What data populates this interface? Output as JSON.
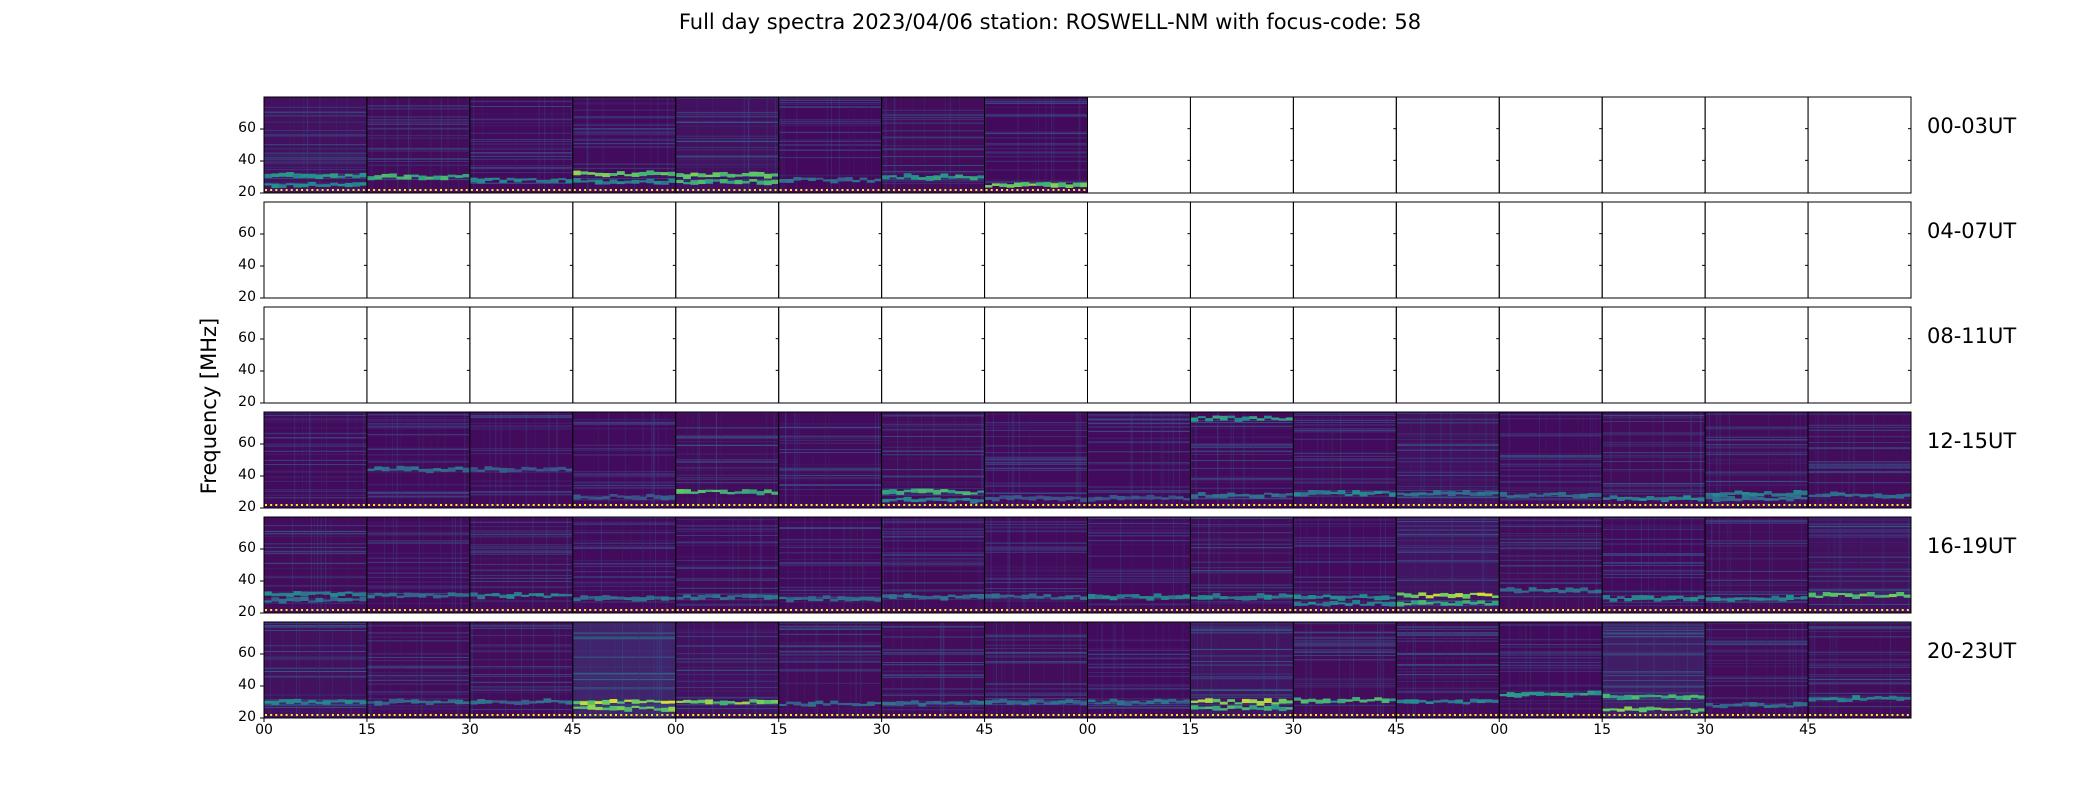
{
  "chart_data": {
    "type": "heatmap",
    "title": "Full day spectra 2023/04/06 station: ROSWELL-NM with focus-code: 58",
    "ylabel": "Frequency [MHz]",
    "xlabel": "",
    "ylim": [
      20,
      80
    ],
    "yticks": [
      "20",
      "40",
      "60"
    ],
    "xticks": [
      "00",
      "15",
      "30",
      "45",
      "00",
      "15",
      "30",
      "45",
      "00",
      "15",
      "30",
      "45",
      "00",
      "15",
      "30",
      "45"
    ],
    "colormap": "viridis",
    "rows": [
      {
        "label": "00-03UT",
        "panels": [
          {
            "present": true,
            "bands": [
              [
                31,
                0.6
              ],
              [
                25,
                0.5
              ]
            ],
            "bg": 0.2
          },
          {
            "present": true,
            "bands": [
              [
                30,
                0.7
              ]
            ],
            "bg": 0.15
          },
          {
            "present": true,
            "bands": [
              [
                28,
                0.5
              ]
            ],
            "bg": 0.12
          },
          {
            "present": true,
            "bands": [
              [
                32,
                0.85
              ],
              [
                27,
                0.5
              ]
            ],
            "bg": 0.12
          },
          {
            "present": true,
            "bands": [
              [
                31,
                0.8
              ],
              [
                27,
                0.7
              ]
            ],
            "bg": 0.2
          },
          {
            "present": true,
            "bands": [
              [
                28,
                0.4
              ]
            ],
            "bg": 0.1
          },
          {
            "present": true,
            "bands": [
              [
                30,
                0.6
              ]
            ],
            "bg": 0.15
          },
          {
            "present": true,
            "bands": [
              [
                25,
                0.85
              ]
            ],
            "bg": 0.1
          },
          {
            "present": false
          },
          {
            "present": false
          },
          {
            "present": false
          },
          {
            "present": false
          },
          {
            "present": false
          },
          {
            "present": false
          },
          {
            "present": false
          },
          {
            "present": false
          }
        ]
      },
      {
        "label": "04-07UT",
        "panels": [
          {
            "present": false
          },
          {
            "present": false
          },
          {
            "present": false
          },
          {
            "present": false
          },
          {
            "present": false
          },
          {
            "present": false
          },
          {
            "present": false
          },
          {
            "present": false
          },
          {
            "present": false
          },
          {
            "present": false
          },
          {
            "present": false
          },
          {
            "present": false
          },
          {
            "present": false
          },
          {
            "present": false
          },
          {
            "present": false
          },
          {
            "present": false
          }
        ]
      },
      {
        "label": "08-11UT",
        "panels": [
          {
            "present": false
          },
          {
            "present": false
          },
          {
            "present": false
          },
          {
            "present": false
          },
          {
            "present": false
          },
          {
            "present": false
          },
          {
            "present": false
          },
          {
            "present": false
          },
          {
            "present": false
          },
          {
            "present": false
          },
          {
            "present": false
          },
          {
            "present": false
          },
          {
            "present": false
          },
          {
            "present": false
          },
          {
            "present": false
          },
          {
            "present": false
          }
        ]
      },
      {
        "label": "12-15UT",
        "panels": [
          {
            "present": true,
            "bands": [],
            "bg": 0.12
          },
          {
            "present": true,
            "bands": [
              [
                44,
                0.4
              ]
            ],
            "bg": 0.12
          },
          {
            "present": true,
            "bands": [
              [
                44,
                0.3
              ]
            ],
            "bg": 0.12
          },
          {
            "present": true,
            "bands": [
              [
                27,
                0.3
              ]
            ],
            "bg": 0.12
          },
          {
            "present": true,
            "bands": [
              [
                30,
                0.75
              ]
            ],
            "bg": 0.15
          },
          {
            "present": true,
            "bands": [],
            "bg": 0.12
          },
          {
            "present": true,
            "bands": [
              [
                30,
                0.7
              ],
              [
                25,
                0.5
              ]
            ],
            "bg": 0.15
          },
          {
            "present": true,
            "bands": [
              [
                26,
                0.3
              ]
            ],
            "bg": 0.12
          },
          {
            "present": true,
            "bands": [
              [
                26,
                0.3
              ]
            ],
            "bg": 0.12
          },
          {
            "present": true,
            "bands": [
              [
                28,
                0.4
              ],
              [
                76,
                0.6
              ]
            ],
            "bg": 0.12
          },
          {
            "present": true,
            "bands": [
              [
                29,
                0.5
              ]
            ],
            "bg": 0.12
          },
          {
            "present": true,
            "bands": [
              [
                29,
                0.4
              ]
            ],
            "bg": 0.2
          },
          {
            "present": true,
            "bands": [
              [
                28,
                0.4
              ]
            ],
            "bg": 0.12
          },
          {
            "present": true,
            "bands": [
              [
                26,
                0.5
              ]
            ],
            "bg": 0.15
          },
          {
            "present": true,
            "bands": [
              [
                29,
                0.5
              ],
              [
                26,
                0.4
              ]
            ],
            "bg": 0.15
          },
          {
            "present": true,
            "bands": [
              [
                28,
                0.4
              ]
            ],
            "bg": 0.15
          }
        ]
      },
      {
        "label": "16-19UT",
        "panels": [
          {
            "present": true,
            "bands": [
              [
                32,
                0.5
              ],
              [
                28,
                0.4
              ]
            ],
            "bg": 0.15
          },
          {
            "present": true,
            "bands": [
              [
                31,
                0.4
              ]
            ],
            "bg": 0.12
          },
          {
            "present": true,
            "bands": [
              [
                31,
                0.5
              ]
            ],
            "bg": 0.15
          },
          {
            "present": true,
            "bands": [
              [
                29,
                0.4
              ]
            ],
            "bg": 0.12
          },
          {
            "present": true,
            "bands": [
              [
                30,
                0.4
              ]
            ],
            "bg": 0.12
          },
          {
            "present": true,
            "bands": [
              [
                29,
                0.4
              ]
            ],
            "bg": 0.12
          },
          {
            "present": true,
            "bands": [
              [
                30,
                0.4
              ]
            ],
            "bg": 0.12
          },
          {
            "present": true,
            "bands": [
              [
                30,
                0.4
              ]
            ],
            "bg": 0.12
          },
          {
            "present": true,
            "bands": [
              [
                30,
                0.5
              ]
            ],
            "bg": 0.12
          },
          {
            "present": true,
            "bands": [
              [
                30,
                0.5
              ]
            ],
            "bg": 0.15
          },
          {
            "present": true,
            "bands": [
              [
                30,
                0.5
              ],
              [
                26,
                0.5
              ]
            ],
            "bg": 0.12
          },
          {
            "present": true,
            "bands": [
              [
                31,
                0.95
              ],
              [
                26,
                0.7
              ]
            ],
            "bg": 0.25
          },
          {
            "present": true,
            "bands": [
              [
                34,
                0.4
              ]
            ],
            "bg": 0.15
          },
          {
            "present": true,
            "bands": [
              [
                29,
                0.5
              ]
            ],
            "bg": 0.12
          },
          {
            "present": true,
            "bands": [
              [
                29,
                0.5
              ]
            ],
            "bg": 0.15
          },
          {
            "present": true,
            "bands": [
              [
                31,
                0.8
              ]
            ],
            "bg": 0.2
          }
        ]
      },
      {
        "label": "20-23UT",
        "panels": [
          {
            "present": true,
            "bands": [
              [
                30,
                0.5
              ]
            ],
            "bg": 0.2
          },
          {
            "present": true,
            "bands": [
              [
                30,
                0.4
              ]
            ],
            "bg": 0.15
          },
          {
            "present": true,
            "bands": [
              [
                30,
                0.4
              ]
            ],
            "bg": 0.15
          },
          {
            "present": true,
            "bands": [
              [
                30,
                0.95
              ],
              [
                26,
                0.85
              ]
            ],
            "bg": 0.45
          },
          {
            "present": true,
            "bands": [
              [
                30,
                0.85
              ]
            ],
            "bg": 0.2
          },
          {
            "present": true,
            "bands": [
              [
                29,
                0.4
              ]
            ],
            "bg": 0.15
          },
          {
            "present": true,
            "bands": [
              [
                29,
                0.4
              ]
            ],
            "bg": 0.15
          },
          {
            "present": true,
            "bands": [
              [
                30,
                0.4
              ]
            ],
            "bg": 0.15
          },
          {
            "present": true,
            "bands": [
              [
                30,
                0.4
              ]
            ],
            "bg": 0.12
          },
          {
            "present": true,
            "bands": [
              [
                30,
                0.9
              ],
              [
                26,
                0.7
              ]
            ],
            "bg": 0.25
          },
          {
            "present": true,
            "bands": [
              [
                31,
                0.7
              ]
            ],
            "bg": 0.15
          },
          {
            "present": true,
            "bands": [
              [
                30,
                0.5
              ]
            ],
            "bg": 0.15
          },
          {
            "present": true,
            "bands": [
              [
                35,
                0.6
              ]
            ],
            "bg": 0.12
          },
          {
            "present": true,
            "bands": [
              [
                33,
                0.7
              ],
              [
                25,
                0.9
              ]
            ],
            "bg": 0.35
          },
          {
            "present": true,
            "bands": [
              [
                28,
                0.4
              ]
            ],
            "bg": 0.15
          },
          {
            "present": true,
            "bands": [
              [
                32,
                0.5
              ]
            ],
            "bg": 0.15
          }
        ]
      }
    ]
  }
}
